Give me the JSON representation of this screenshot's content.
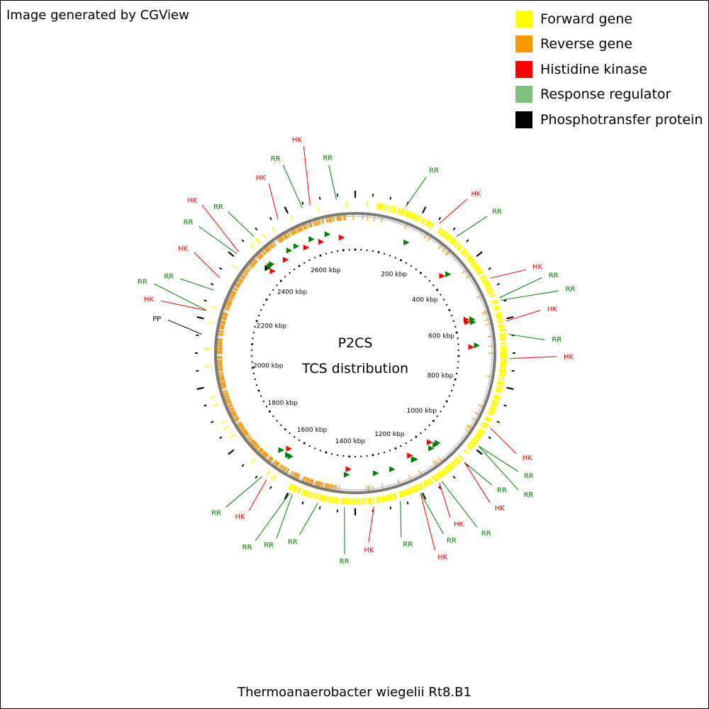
{
  "credit": "Image generated by CGView",
  "center_title": "P2CS",
  "center_subtitle": "TCS distribution",
  "organism": "Thermoanaerobacter wiegelii Rt8.B1",
  "legend": [
    {
      "label": "Forward gene",
      "color": "#ffff00"
    },
    {
      "label": "Reverse gene",
      "color": "#ff9900"
    },
    {
      "label": "Histidine kinase",
      "color": "#ff0000"
    },
    {
      "label": "Response regulator",
      "color": "#80c080"
    },
    {
      "label": "Phosphotransfer protein",
      "color": "#000000"
    }
  ],
  "colors": {
    "forward": "#ffff00",
    "reverse": "#ff9900",
    "hk": "#ff0000",
    "rr": "#008000",
    "pp": "#000000",
    "backbone": "#808080"
  },
  "chart_data": {
    "type": "circular-genome-map",
    "genome_length_kbp": 2750,
    "tick_labels": [
      "200 kbp",
      "400 kbp",
      "600 kbp",
      "800 kbp",
      "1000 kbp",
      "1200 kbp",
      "1400 kbp",
      "1600 kbp",
      "1800 kbp",
      "2000 kbp",
      "2200 kbp",
      "2400 kbp",
      "2600 kbp"
    ],
    "tick_positions_kbp": [
      200,
      400,
      600,
      800,
      1000,
      1200,
      1400,
      1600,
      1800,
      2000,
      2200,
      2400,
      2600
    ],
    "tcs_features": [
      {
        "type": "RR",
        "strand": "+",
        "kbp": 190
      },
      {
        "type": "RR",
        "strand": "+",
        "kbp": 380
      },
      {
        "type": "HK",
        "strand": "+",
        "kbp": 370
      },
      {
        "type": "HK",
        "strand": "+",
        "kbp": 560
      },
      {
        "type": "RR",
        "strand": "+",
        "kbp": 565
      },
      {
        "type": "HK",
        "strand": "+",
        "kbp": 570
      },
      {
        "type": "RR",
        "strand": "+",
        "kbp": 575
      },
      {
        "type": "RR",
        "strand": "+",
        "kbp": 660
      },
      {
        "type": "HK",
        "strand": "+",
        "kbp": 665
      },
      {
        "type": "RR",
        "strand": "+",
        "kbp": 1050
      },
      {
        "type": "RR",
        "strand": "+",
        "kbp": 1060
      },
      {
        "type": "HK",
        "strand": "+",
        "kbp": 1070
      },
      {
        "type": "RR",
        "strand": "+",
        "kbp": 1080
      },
      {
        "type": "RR",
        "strand": "+",
        "kbp": 1150
      },
      {
        "type": "RR",
        "strand": "+",
        "kbp": 1155
      },
      {
        "type": "HK",
        "strand": "+",
        "kbp": 1160
      },
      {
        "type": "RR",
        "strand": "+",
        "kbp": 1240
      },
      {
        "type": "HK",
        "strand": "+",
        "kbp": 1400
      },
      {
        "type": "RR",
        "strand": "+",
        "kbp": 1405
      },
      {
        "type": "RR",
        "strand": "+",
        "kbp": 1300
      },
      {
        "type": "RR",
        "strand": "-",
        "kbp": 1620
      },
      {
        "type": "RR",
        "strand": "-",
        "kbp": 1630
      },
      {
        "type": "HK",
        "strand": "-",
        "kbp": 1640
      },
      {
        "type": "RR",
        "strand": "-",
        "kbp": 1660
      },
      {
        "type": "PP",
        "strand": "-",
        "kbp": 2400
      },
      {
        "type": "HK",
        "strand": "-",
        "kbp": 2405
      },
      {
        "type": "RR",
        "strand": "-",
        "kbp": 2410
      },
      {
        "type": "RR",
        "strand": "-",
        "kbp": 2420
      },
      {
        "type": "HK",
        "strand": "-",
        "kbp": 2470
      },
      {
        "type": "RR",
        "strand": "-",
        "kbp": 2500
      },
      {
        "type": "RR",
        "strand": "-",
        "kbp": 2530
      },
      {
        "type": "HK",
        "strand": "-",
        "kbp": 2560
      },
      {
        "type": "RR",
        "strand": "-",
        "kbp": 2590
      },
      {
        "type": "HK",
        "strand": "-",
        "kbp": 2620
      },
      {
        "type": "RR",
        "strand": "-",
        "kbp": 2650
      },
      {
        "type": "HK",
        "strand": "-",
        "kbp": 2700
      }
    ],
    "callouts": [
      {
        "label": "RR",
        "type": "RR",
        "deg": 22
      },
      {
        "label": "HK",
        "type": "HK",
        "deg": 36
      },
      {
        "label": "RR",
        "type": "RR",
        "deg": 44
      },
      {
        "label": "HK",
        "type": "HK",
        "deg": 64
      },
      {
        "label": "RR",
        "type": "RR",
        "deg": 68
      },
      {
        "label": "RR",
        "type": "RR",
        "deg": 73
      },
      {
        "label": "HK",
        "type": "HK",
        "deg": 77
      },
      {
        "label": "RR",
        "type": "RR",
        "deg": 86
      },
      {
        "label": "HK",
        "type": "HK",
        "deg": 91
      },
      {
        "label": "HK",
        "type": "HK",
        "deg": 122
      },
      {
        "label": "RR",
        "type": "RR",
        "deg": 126
      },
      {
        "label": "RR",
        "type": "RR",
        "deg": 130
      },
      {
        "label": "RR",
        "type": "RR",
        "deg": 134
      },
      {
        "label": "HK",
        "type": "HK",
        "deg": 138
      },
      {
        "label": "RR",
        "type": "RR",
        "deg": 145
      },
      {
        "label": "HK",
        "type": "HK",
        "deg": 150
      },
      {
        "label": "RR",
        "type": "RR",
        "deg": 154
      },
      {
        "label": "HK",
        "type": "HK",
        "deg": 158
      },
      {
        "label": "RR",
        "type": "RR",
        "deg": 166
      },
      {
        "label": "HK",
        "type": "HK",
        "deg": 176
      },
      {
        "label": "RR",
        "type": "RR",
        "deg": 183
      },
      {
        "label": "RR",
        "type": "RR",
        "deg": 197
      },
      {
        "label": "RR",
        "type": "RR",
        "deg": 203
      },
      {
        "label": "RR",
        "type": "RR",
        "deg": 208
      },
      {
        "label": "HK",
        "type": "HK",
        "deg": 214
      },
      {
        "label": "RR",
        "type": "RR",
        "deg": 220
      },
      {
        "label": "PP",
        "type": "PP",
        "deg": 280
      },
      {
        "label": "HK",
        "type": "HK",
        "deg": 285
      },
      {
        "label": "RR",
        "type": "RR",
        "deg": 289
      },
      {
        "label": "RR",
        "type": "RR",
        "deg": 293
      },
      {
        "label": "HK",
        "type": "HK",
        "deg": 302
      },
      {
        "label": "RR",
        "type": "RR",
        "deg": 309
      },
      {
        "label": "HK",
        "type": "HK",
        "deg": 314
      },
      {
        "label": "RR",
        "type": "RR",
        "deg": 318
      },
      {
        "label": "HK",
        "type": "HK",
        "deg": 333
      },
      {
        "label": "RR",
        "type": "RR",
        "deg": 339
      },
      {
        "label": "HK",
        "type": "HK",
        "deg": 346
      },
      {
        "label": "RR",
        "type": "RR",
        "deg": 352
      }
    ]
  }
}
